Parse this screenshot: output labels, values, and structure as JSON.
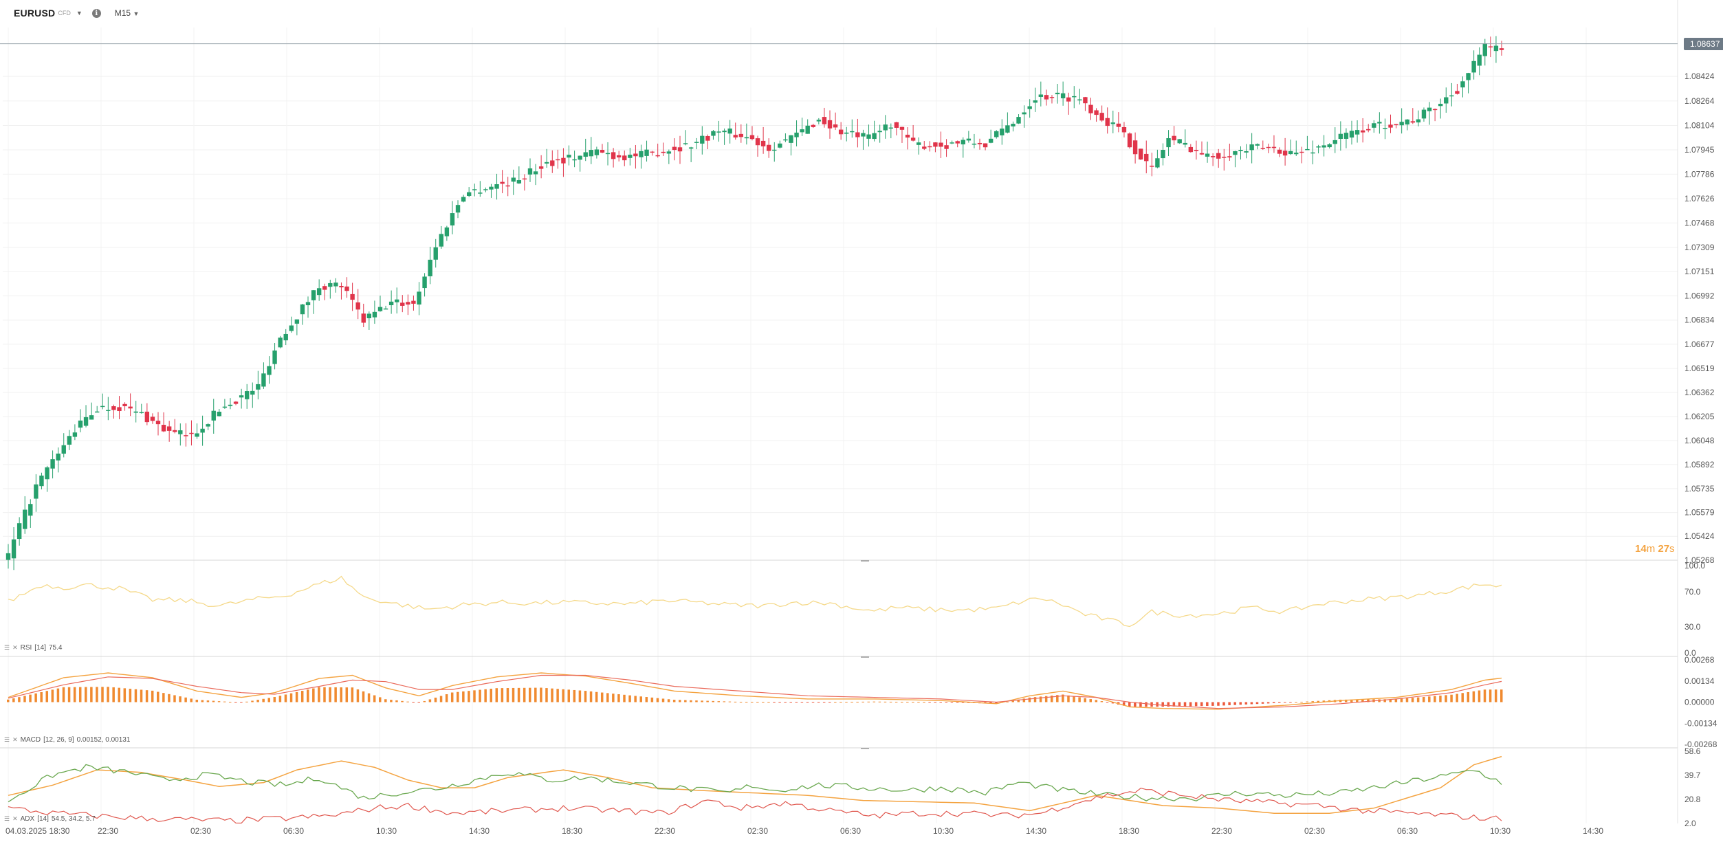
{
  "header": {
    "symbol": "EURUSD",
    "symbol_tag": "CFD",
    "timeframe": "M15"
  },
  "price_axis": {
    "last_price": "1.08637",
    "ticks": [
      "1.08424",
      "1.08264",
      "1.08104",
      "1.07945",
      "1.07786",
      "1.07626",
      "1.07468",
      "1.07309",
      "1.07151",
      "1.06992",
      "1.06834",
      "1.06677",
      "1.06519",
      "1.06362",
      "1.06205",
      "1.06048",
      "1.05892",
      "1.05735",
      "1.05579",
      "1.05424",
      "1.05268"
    ]
  },
  "countdown": {
    "minutes": "14",
    "m": "m",
    "seconds": "27",
    "s": "s"
  },
  "rsi": {
    "label": "RSI",
    "params": "[14]",
    "value": "75.4",
    "ticks": [
      "100.0",
      "70.0",
      "30.0",
      "0.0"
    ]
  },
  "macd": {
    "label": "MACD",
    "params": "[12, 26, 9]",
    "values": "0.00152, 0.00131",
    "ticks": [
      "0.00268",
      "0.00134",
      "0.00000",
      "-0.00134",
      "-0.00268"
    ]
  },
  "adx": {
    "label": "ADX",
    "params": "[14]",
    "values": "54.5, 34.2, 5.7",
    "ticks": [
      "58.6",
      "39.7",
      "20.8",
      "2.0"
    ]
  },
  "time_axis": {
    "labels": [
      "04.03.2025 18:30",
      "22:30",
      "02:30",
      "06:30",
      "10:30",
      "14:30",
      "18:30",
      "22:30",
      "02:30",
      "06:30",
      "10:30",
      "14:30",
      "18:30",
      "22:30",
      "02:30",
      "06:30",
      "10:30",
      "14:30"
    ]
  },
  "colors": {
    "bull": "#26a06c",
    "bear": "#e0344a",
    "rsi_line": "#f5d98a",
    "macd_line": "#f4a340",
    "signal_line": "#ea6a5a",
    "hist": "#f08a30",
    "adx_line": "#f4a340",
    "plus_di": "#6aa84f",
    "minus_di": "#e0574e"
  },
  "chart_data": {
    "type": "candlestick",
    "x_labels": [
      "04.03.2025 18:30",
      "22:30",
      "02:30",
      "06:30",
      "10:30",
      "14:30",
      "18:30",
      "22:30",
      "02:30",
      "06:30",
      "10:30",
      "14:30",
      "18:30",
      "22:30",
      "02:30",
      "06:30",
      "10:30",
      "14:30"
    ],
    "ylim": [
      1.05268,
      1.08743
    ],
    "last_price": 1.08637,
    "close_path": [
      [
        0,
        1.053
      ],
      [
        5,
        1.0575
      ],
      [
        12,
        1.0612
      ],
      [
        16,
        1.0626
      ],
      [
        20,
        1.0627
      ],
      [
        24,
        1.0622
      ],
      [
        29,
        1.061
      ],
      [
        33,
        1.0608
      ],
      [
        38,
        1.0625
      ],
      [
        45,
        1.064
      ],
      [
        49,
        1.0672
      ],
      [
        56,
        1.0706
      ],
      [
        60,
        1.0706
      ],
      [
        64,
        1.0683
      ],
      [
        69,
        1.0695
      ],
      [
        73,
        1.0694
      ],
      [
        77,
        1.0732
      ],
      [
        82,
        1.0766
      ],
      [
        86,
        1.077
      ],
      [
        91,
        1.0774
      ],
      [
        97,
        1.0786
      ],
      [
        102,
        1.079
      ],
      [
        106,
        1.0794
      ],
      [
        110,
        1.079
      ],
      [
        114,
        1.0791
      ],
      [
        118,
        1.0794
      ],
      [
        123,
        1.0798
      ],
      [
        128,
        1.0807
      ],
      [
        133,
        1.0803
      ],
      [
        137,
        1.0796
      ],
      [
        141,
        1.0802
      ],
      [
        146,
        1.0814
      ],
      [
        150,
        1.0806
      ],
      [
        155,
        1.0802
      ],
      [
        159,
        1.0812
      ],
      [
        163,
        1.0798
      ],
      [
        168,
        1.0797
      ],
      [
        172,
        1.08
      ],
      [
        176,
        1.0798
      ],
      [
        181,
        1.0813
      ],
      [
        185,
        1.0829
      ],
      [
        189,
        1.083
      ],
      [
        193,
        1.0828
      ],
      [
        196,
        1.0818
      ],
      [
        200,
        1.0808
      ],
      [
        204,
        1.079
      ],
      [
        206,
        1.0782
      ],
      [
        209,
        1.0802
      ],
      [
        212,
        1.0798
      ],
      [
        216,
        1.079
      ],
      [
        221,
        1.0793
      ],
      [
        225,
        1.0796
      ],
      [
        228,
        1.0795
      ],
      [
        232,
        1.0792
      ],
      [
        236,
        1.0796
      ],
      [
        240,
        1.0803
      ],
      [
        245,
        1.0809
      ],
      [
        249,
        1.0812
      ],
      [
        253,
        1.0814
      ],
      [
        257,
        1.0822
      ],
      [
        261,
        1.0834
      ],
      [
        264,
        1.085
      ],
      [
        266,
        1.0862
      ],
      [
        267,
        1.0859
      ],
      [
        269,
        1.0862
      ]
    ],
    "rsi_ylim": [
      0,
      100
    ],
    "rsi_path": [
      [
        0,
        59
      ],
      [
        6,
        78
      ],
      [
        10,
        75
      ],
      [
        14,
        78
      ],
      [
        20,
        74
      ],
      [
        26,
        61
      ],
      [
        32,
        60
      ],
      [
        38,
        54
      ],
      [
        44,
        61
      ],
      [
        50,
        66
      ],
      [
        56,
        79
      ],
      [
        60,
        86
      ],
      [
        64,
        64
      ],
      [
        70,
        56
      ],
      [
        76,
        50
      ],
      [
        82,
        55
      ],
      [
        88,
        58
      ],
      [
        94,
        57
      ],
      [
        100,
        58
      ],
      [
        106,
        57
      ],
      [
        112,
        56
      ],
      [
        118,
        60
      ],
      [
        124,
        58
      ],
      [
        130,
        55
      ],
      [
        136,
        54
      ],
      [
        142,
        58
      ],
      [
        148,
        57
      ],
      [
        152,
        52
      ],
      [
        156,
        48
      ],
      [
        160,
        52
      ],
      [
        166,
        50
      ],
      [
        172,
        49
      ],
      [
        178,
        51
      ],
      [
        182,
        58
      ],
      [
        186,
        63
      ],
      [
        190,
        55
      ],
      [
        194,
        44
      ],
      [
        198,
        38
      ],
      [
        202,
        32
      ],
      [
        206,
        47
      ],
      [
        212,
        43
      ],
      [
        218,
        45
      ],
      [
        224,
        52
      ],
      [
        230,
        47
      ],
      [
        236,
        56
      ],
      [
        242,
        60
      ],
      [
        248,
        63
      ],
      [
        254,
        66
      ],
      [
        260,
        72
      ],
      [
        266,
        79
      ],
      [
        269,
        76
      ]
    ],
    "macd_ylim": [
      -0.00268,
      0.00268
    ],
    "macd_path": [
      [
        0,
        0.0003
      ],
      [
        10,
        0.00155
      ],
      [
        18,
        0.00185
      ],
      [
        26,
        0.00155
      ],
      [
        34,
        0.0007
      ],
      [
        42,
        0.0003
      ],
      [
        48,
        0.0006
      ],
      [
        56,
        0.0015
      ],
      [
        62,
        0.0017
      ],
      [
        68,
        0.0009
      ],
      [
        74,
        0.0004
      ],
      [
        80,
        0.00105
      ],
      [
        88,
        0.0016
      ],
      [
        96,
        0.00185
      ],
      [
        104,
        0.00165
      ],
      [
        112,
        0.0012
      ],
      [
        120,
        0.0007
      ],
      [
        132,
        0.0004
      ],
      [
        144,
        0.0002
      ],
      [
        156,
        0.0002
      ],
      [
        168,
        0.0001
      ],
      [
        178,
        -0.0001
      ],
      [
        184,
        0.0004
      ],
      [
        190,
        0.0007
      ],
      [
        196,
        0.0003
      ],
      [
        202,
        -0.0003
      ],
      [
        208,
        -0.0004
      ],
      [
        218,
        -0.00045
      ],
      [
        230,
        -0.0002
      ],
      [
        240,
        0.0001
      ],
      [
        250,
        0.0003
      ],
      [
        260,
        0.0008
      ],
      [
        266,
        0.0014
      ],
      [
        269,
        0.00152
      ]
    ],
    "signal_path": [
      [
        0,
        0.00025
      ],
      [
        10,
        0.0011
      ],
      [
        18,
        0.0016
      ],
      [
        26,
        0.0015
      ],
      [
        34,
        0.001
      ],
      [
        42,
        0.0006
      ],
      [
        48,
        0.0005
      ],
      [
        56,
        0.001
      ],
      [
        62,
        0.0014
      ],
      [
        68,
        0.0013
      ],
      [
        74,
        0.0008
      ],
      [
        80,
        0.0008
      ],
      [
        88,
        0.0013
      ],
      [
        96,
        0.0017
      ],
      [
        104,
        0.0017
      ],
      [
        112,
        0.0014
      ],
      [
        120,
        0.001
      ],
      [
        132,
        0.0007
      ],
      [
        144,
        0.0004
      ],
      [
        156,
        0.0003
      ],
      [
        168,
        0.0002
      ],
      [
        178,
        0.0
      ],
      [
        184,
        0.0002
      ],
      [
        190,
        0.0004
      ],
      [
        196,
        0.0003
      ],
      [
        202,
        0.0
      ],
      [
        208,
        -0.0002
      ],
      [
        218,
        -0.0004
      ],
      [
        230,
        -0.0003
      ],
      [
        240,
        -0.0001
      ],
      [
        250,
        0.0002
      ],
      [
        260,
        0.0006
      ],
      [
        266,
        0.0011
      ],
      [
        269,
        0.00131
      ]
    ],
    "adx_ylim": [
      2.0,
      58.6
    ],
    "adx_path": [
      [
        0,
        24
      ],
      [
        8,
        32
      ],
      [
        16,
        44
      ],
      [
        24,
        42
      ],
      [
        32,
        36
      ],
      [
        38,
        31
      ],
      [
        46,
        34
      ],
      [
        52,
        44
      ],
      [
        60,
        51
      ],
      [
        66,
        46
      ],
      [
        72,
        36
      ],
      [
        78,
        30
      ],
      [
        84,
        30
      ],
      [
        90,
        38
      ],
      [
        100,
        44
      ],
      [
        108,
        38
      ],
      [
        116,
        30
      ],
      [
        124,
        28
      ],
      [
        134,
        26
      ],
      [
        144,
        24
      ],
      [
        154,
        20
      ],
      [
        164,
        19
      ],
      [
        174,
        18
      ],
      [
        184,
        12
      ],
      [
        190,
        18
      ],
      [
        196,
        24
      ],
      [
        202,
        20
      ],
      [
        208,
        16
      ],
      [
        218,
        14
      ],
      [
        228,
        10
      ],
      [
        238,
        10
      ],
      [
        246,
        14
      ],
      [
        252,
        22
      ],
      [
        258,
        30
      ],
      [
        264,
        48
      ],
      [
        269,
        54.5
      ]
    ],
    "plus_di_path": [
      [
        0,
        20
      ],
      [
        8,
        40
      ],
      [
        14,
        46
      ],
      [
        22,
        42
      ],
      [
        28,
        36
      ],
      [
        36,
        40
      ],
      [
        44,
        34
      ],
      [
        50,
        32
      ],
      [
        56,
        38
      ],
      [
        64,
        22
      ],
      [
        70,
        26
      ],
      [
        78,
        30
      ],
      [
        84,
        36
      ],
      [
        90,
        42
      ],
      [
        98,
        36
      ],
      [
        104,
        38
      ],
      [
        112,
        34
      ],
      [
        120,
        30
      ],
      [
        130,
        26
      ],
      [
        134,
        32
      ],
      [
        138,
        28
      ],
      [
        146,
        32
      ],
      [
        154,
        30
      ],
      [
        162,
        28
      ],
      [
        168,
        30
      ],
      [
        176,
        26
      ],
      [
        182,
        34
      ],
      [
        190,
        28
      ],
      [
        198,
        24
      ],
      [
        206,
        22
      ],
      [
        214,
        22
      ],
      [
        222,
        26
      ],
      [
        230,
        24
      ],
      [
        240,
        26
      ],
      [
        246,
        30
      ],
      [
        254,
        36
      ],
      [
        260,
        40
      ],
      [
        264,
        44
      ],
      [
        269,
        34.2
      ]
    ],
    "minus_di_path": [
      [
        0,
        14
      ],
      [
        8,
        10
      ],
      [
        16,
        8
      ],
      [
        24,
        6
      ],
      [
        32,
        5
      ],
      [
        40,
        4
      ],
      [
        50,
        6
      ],
      [
        58,
        8
      ],
      [
        66,
        14
      ],
      [
        72,
        16
      ],
      [
        80,
        10
      ],
      [
        90,
        12
      ],
      [
        100,
        14
      ],
      [
        110,
        12
      ],
      [
        118,
        10
      ],
      [
        126,
        20
      ],
      [
        132,
        14
      ],
      [
        140,
        18
      ],
      [
        148,
        12
      ],
      [
        156,
        8
      ],
      [
        164,
        10
      ],
      [
        172,
        10
      ],
      [
        180,
        8
      ],
      [
        186,
        10
      ],
      [
        192,
        18
      ],
      [
        198,
        24
      ],
      [
        204,
        28
      ],
      [
        212,
        24
      ],
      [
        220,
        20
      ],
      [
        228,
        18
      ],
      [
        236,
        16
      ],
      [
        244,
        12
      ],
      [
        252,
        10
      ],
      [
        260,
        8
      ],
      [
        266,
        6
      ],
      [
        269,
        5.7
      ]
    ]
  }
}
